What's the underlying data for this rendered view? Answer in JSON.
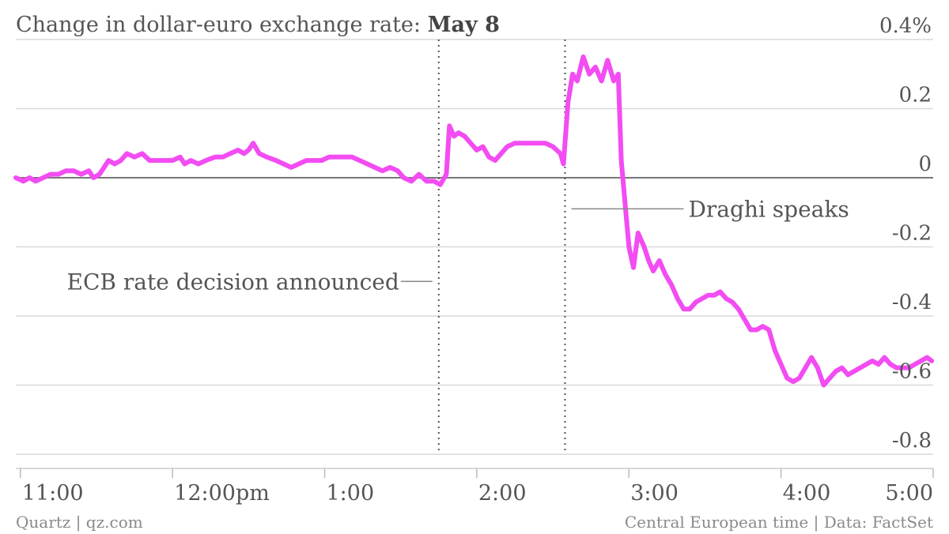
{
  "chart_data": {
    "type": "line",
    "title_prefix": "Change in dollar-euro exchange rate: ",
    "title_bold": "May 8",
    "ylim": [
      -0.8,
      0.4
    ],
    "yticks": [
      {
        "value": 0.4,
        "label": "0.4%"
      },
      {
        "value": 0.2,
        "label": "0.2"
      },
      {
        "value": 0.0,
        "label": "0"
      },
      {
        "value": -0.2,
        "label": "-0.2"
      },
      {
        "value": -0.4,
        "label": "-0.4"
      },
      {
        "value": -0.6,
        "label": "-0.6"
      },
      {
        "value": -0.8,
        "label": "-0.8"
      }
    ],
    "xlim": [
      10.97,
      17.0
    ],
    "xticks": [
      {
        "value": 11,
        "label": "11:00"
      },
      {
        "value": 12,
        "label": "12:00pm"
      },
      {
        "value": 13,
        "label": "1:00"
      },
      {
        "value": 14,
        "label": "2:00"
      },
      {
        "value": 15,
        "label": "3:00"
      },
      {
        "value": 16,
        "label": "4:00"
      },
      {
        "value": 17,
        "label": "5:00"
      }
    ],
    "grid": true,
    "annotations": [
      {
        "label": "ECB rate decision announced",
        "x": 13.75,
        "side": "left",
        "y": -0.3
      },
      {
        "label": "Draghi speaks",
        "x": 14.58,
        "side": "right",
        "y": -0.09
      }
    ],
    "footer_left": "Quartz | qz.com",
    "footer_right": "Central European time | Data: FactSet",
    "series": [
      {
        "color": "#f24cf2",
        "points": [
          [
            10.97,
            0.0
          ],
          [
            11.02,
            -0.01
          ],
          [
            11.06,
            0.0
          ],
          [
            11.1,
            -0.01
          ],
          [
            11.15,
            0.0
          ],
          [
            11.2,
            0.01
          ],
          [
            11.25,
            0.01
          ],
          [
            11.3,
            0.02
          ],
          [
            11.35,
            0.02
          ],
          [
            11.4,
            0.01
          ],
          [
            11.45,
            0.02
          ],
          [
            11.48,
            0.0
          ],
          [
            11.52,
            0.01
          ],
          [
            11.55,
            0.03
          ],
          [
            11.58,
            0.05
          ],
          [
            11.62,
            0.04
          ],
          [
            11.66,
            0.05
          ],
          [
            11.7,
            0.07
          ],
          [
            11.75,
            0.06
          ],
          [
            11.8,
            0.07
          ],
          [
            11.85,
            0.05
          ],
          [
            11.9,
            0.05
          ],
          [
            11.95,
            0.05
          ],
          [
            12.0,
            0.05
          ],
          [
            12.05,
            0.06
          ],
          [
            12.08,
            0.04
          ],
          [
            12.12,
            0.05
          ],
          [
            12.17,
            0.04
          ],
          [
            12.22,
            0.05
          ],
          [
            12.28,
            0.06
          ],
          [
            12.33,
            0.06
          ],
          [
            12.38,
            0.07
          ],
          [
            12.43,
            0.08
          ],
          [
            12.47,
            0.07
          ],
          [
            12.5,
            0.08
          ],
          [
            12.53,
            0.1
          ],
          [
            12.57,
            0.07
          ],
          [
            12.62,
            0.06
          ],
          [
            12.68,
            0.05
          ],
          [
            12.73,
            0.04
          ],
          [
            12.78,
            0.03
          ],
          [
            12.83,
            0.04
          ],
          [
            12.88,
            0.05
          ],
          [
            12.93,
            0.05
          ],
          [
            12.98,
            0.05
          ],
          [
            13.03,
            0.06
          ],
          [
            13.08,
            0.06
          ],
          [
            13.13,
            0.06
          ],
          [
            13.18,
            0.06
          ],
          [
            13.23,
            0.05
          ],
          [
            13.28,
            0.04
          ],
          [
            13.33,
            0.03
          ],
          [
            13.38,
            0.02
          ],
          [
            13.43,
            0.03
          ],
          [
            13.48,
            0.02
          ],
          [
            13.52,
            0.0
          ],
          [
            13.57,
            -0.01
          ],
          [
            13.62,
            0.01
          ],
          [
            13.67,
            -0.01
          ],
          [
            13.72,
            -0.01
          ],
          [
            13.76,
            -0.02
          ],
          [
            13.8,
            0.01
          ],
          [
            13.82,
            0.15
          ],
          [
            13.85,
            0.12
          ],
          [
            13.88,
            0.13
          ],
          [
            13.92,
            0.12
          ],
          [
            13.96,
            0.1
          ],
          [
            14.0,
            0.08
          ],
          [
            14.04,
            0.09
          ],
          [
            14.08,
            0.06
          ],
          [
            14.12,
            0.05
          ],
          [
            14.16,
            0.07
          ],
          [
            14.2,
            0.09
          ],
          [
            14.25,
            0.1
          ],
          [
            14.3,
            0.1
          ],
          [
            14.35,
            0.1
          ],
          [
            14.4,
            0.1
          ],
          [
            14.45,
            0.1
          ],
          [
            14.5,
            0.09
          ],
          [
            14.55,
            0.07
          ],
          [
            14.57,
            0.04
          ],
          [
            14.6,
            0.22
          ],
          [
            14.63,
            0.3
          ],
          [
            14.66,
            0.28
          ],
          [
            14.7,
            0.35
          ],
          [
            14.74,
            0.3
          ],
          [
            14.78,
            0.32
          ],
          [
            14.82,
            0.28
          ],
          [
            14.86,
            0.34
          ],
          [
            14.9,
            0.28
          ],
          [
            14.93,
            0.3
          ],
          [
            14.95,
            0.05
          ],
          [
            14.98,
            -0.1
          ],
          [
            15.0,
            -0.2
          ],
          [
            15.03,
            -0.26
          ],
          [
            15.06,
            -0.16
          ],
          [
            15.1,
            -0.2
          ],
          [
            15.13,
            -0.24
          ],
          [
            15.16,
            -0.27
          ],
          [
            15.2,
            -0.24
          ],
          [
            15.24,
            -0.28
          ],
          [
            15.28,
            -0.31
          ],
          [
            15.32,
            -0.35
          ],
          [
            15.36,
            -0.38
          ],
          [
            15.4,
            -0.38
          ],
          [
            15.44,
            -0.36
          ],
          [
            15.48,
            -0.35
          ],
          [
            15.52,
            -0.34
          ],
          [
            15.56,
            -0.34
          ],
          [
            15.6,
            -0.33
          ],
          [
            15.64,
            -0.35
          ],
          [
            15.68,
            -0.36
          ],
          [
            15.72,
            -0.38
          ],
          [
            15.76,
            -0.41
          ],
          [
            15.8,
            -0.44
          ],
          [
            15.84,
            -0.44
          ],
          [
            15.88,
            -0.43
          ],
          [
            15.92,
            -0.44
          ],
          [
            15.96,
            -0.5
          ],
          [
            16.0,
            -0.54
          ],
          [
            16.04,
            -0.58
          ],
          [
            16.08,
            -0.59
          ],
          [
            16.12,
            -0.58
          ],
          [
            16.16,
            -0.55
          ],
          [
            16.2,
            -0.52
          ],
          [
            16.24,
            -0.55
          ],
          [
            16.28,
            -0.6
          ],
          [
            16.32,
            -0.58
          ],
          [
            16.36,
            -0.56
          ],
          [
            16.4,
            -0.55
          ],
          [
            16.44,
            -0.57
          ],
          [
            16.48,
            -0.56
          ],
          [
            16.52,
            -0.55
          ],
          [
            16.56,
            -0.54
          ],
          [
            16.6,
            -0.53
          ],
          [
            16.64,
            -0.54
          ],
          [
            16.68,
            -0.52
          ],
          [
            16.72,
            -0.54
          ],
          [
            16.76,
            -0.55
          ],
          [
            16.8,
            -0.55
          ],
          [
            16.84,
            -0.55
          ],
          [
            16.88,
            -0.54
          ],
          [
            16.92,
            -0.53
          ],
          [
            16.96,
            -0.52
          ],
          [
            16.99,
            -0.53
          ]
        ]
      }
    ]
  }
}
